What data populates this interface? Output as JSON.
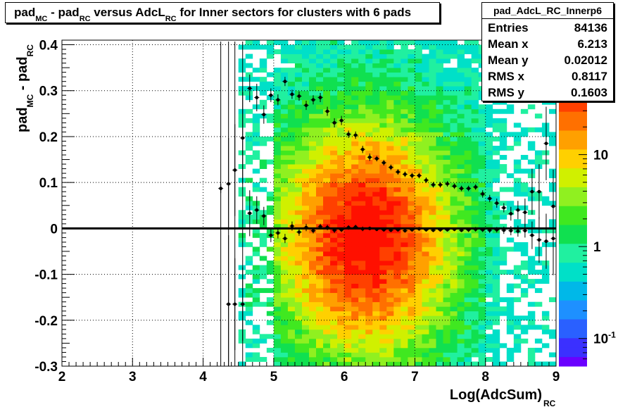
{
  "title": {
    "main": "pad",
    "sub1": "MC",
    "minus": " - pad",
    "sub2": "RC",
    "mid": " versus AdcL",
    "sub3": "RC",
    "tail": " for Inner sectors for clusters with 6 pads"
  },
  "stats": {
    "name": "pad_AdcL_RC_Innerp6",
    "rows": [
      {
        "label": "Entries",
        "value": "84136"
      },
      {
        "label": "Mean x",
        "value": "6.213"
      },
      {
        "label": "Mean y",
        "value": "0.02012"
      },
      {
        "label": "RMS x",
        "value": "0.8117"
      },
      {
        "label": "RMS y",
        "value": "0.1603"
      }
    ]
  },
  "colors": {
    "frame": "#000000",
    "grid": "#000000",
    "profile": "#000000"
  },
  "chart_data": {
    "type": "heatmap",
    "xlabel": {
      "main": "Log(AdcSum)",
      "sub": "RC"
    },
    "ylabel": {
      "main": "pad",
      "sub1": "MC",
      "minus": " - pad",
      "sub2": "RC"
    },
    "xlim": [
      2,
      9
    ],
    "ylim": [
      -0.3,
      0.41
    ],
    "xticks": [
      "2",
      "3",
      "4",
      "5",
      "6",
      "7",
      "8",
      "9"
    ],
    "yticks": [
      "-0.3",
      "-0.2",
      "-0.1",
      "0",
      "0.1",
      "0.2",
      "0.3",
      "0.4"
    ],
    "colorbar": {
      "scale": "log",
      "range": [
        0.05,
        60
      ],
      "labels": [
        {
          "value": 10,
          "text": "10"
        },
        {
          "value": 1,
          "text": "1"
        },
        {
          "value": 0.1,
          "text": "10",
          "exp": "-1"
        }
      ]
    },
    "grid": true,
    "profile_upper": [
      [
        4.25,
        0.087,
        0.01
      ],
      [
        4.36,
        0.097,
        0.1
      ],
      [
        4.45,
        0.127,
        0.1
      ],
      [
        4.56,
        0.197,
        0.1
      ],
      [
        4.66,
        0.305,
        0.03
      ],
      [
        4.76,
        0.285,
        0.03
      ],
      [
        4.86,
        0.248,
        0.02
      ],
      [
        4.96,
        0.29,
        0.015
      ],
      [
        5.06,
        0.28,
        0.012
      ],
      [
        5.16,
        0.32,
        0.01
      ],
      [
        5.26,
        0.292,
        0.01
      ],
      [
        5.36,
        0.288,
        0.01
      ],
      [
        5.46,
        0.268,
        0.01
      ],
      [
        5.56,
        0.28,
        0.01
      ],
      [
        5.66,
        0.285,
        0.01
      ],
      [
        5.76,
        0.255,
        0.01
      ],
      [
        5.86,
        0.23,
        0.01
      ],
      [
        5.96,
        0.235,
        0.01
      ],
      [
        6.06,
        0.205,
        0.008
      ],
      [
        6.16,
        0.203,
        0.008
      ],
      [
        6.26,
        0.172,
        0.008
      ],
      [
        6.36,
        0.155,
        0.008
      ],
      [
        6.46,
        0.152,
        0.006
      ],
      [
        6.56,
        0.143,
        0.006
      ],
      [
        6.66,
        0.133,
        0.006
      ],
      [
        6.76,
        0.123,
        0.006
      ],
      [
        6.86,
        0.118,
        0.006
      ],
      [
        6.96,
        0.115,
        0.006
      ],
      [
        7.06,
        0.115,
        0.006
      ],
      [
        7.16,
        0.105,
        0.006
      ],
      [
        7.26,
        0.095,
        0.006
      ],
      [
        7.36,
        0.095,
        0.006
      ],
      [
        7.46,
        0.097,
        0.006
      ],
      [
        7.56,
        0.092,
        0.006
      ],
      [
        7.66,
        0.087,
        0.006
      ],
      [
        7.76,
        0.087,
        0.006
      ],
      [
        7.86,
        0.09,
        0.006
      ],
      [
        7.96,
        0.075,
        0.008
      ],
      [
        8.06,
        0.065,
        0.008
      ],
      [
        8.16,
        0.055,
        0.01
      ],
      [
        8.26,
        0.045,
        0.01
      ],
      [
        8.36,
        0.032,
        0.015
      ],
      [
        8.46,
        0.04,
        0.02
      ],
      [
        8.56,
        0.035,
        0.03
      ],
      [
        8.66,
        0.08,
        0.05
      ],
      [
        8.76,
        0.08,
        0.06
      ],
      [
        8.86,
        0.185,
        0.08
      ],
      [
        8.96,
        0.048,
        0.08
      ]
    ],
    "profile_lower": [
      [
        4.36,
        -0.165,
        0.15
      ],
      [
        4.45,
        -0.165,
        0.1
      ],
      [
        4.56,
        -0.165,
        0.08
      ],
      [
        4.66,
        0.033,
        0.05
      ],
      [
        4.76,
        0.04,
        0.03
      ],
      [
        4.86,
        0.027,
        0.02
      ],
      [
        4.96,
        -0.015,
        0.015
      ],
      [
        5.06,
        -0.01,
        0.012
      ],
      [
        5.16,
        -0.022,
        0.01
      ],
      [
        5.26,
        0.005,
        0.01
      ],
      [
        5.36,
        -0.008,
        0.008
      ],
      [
        5.46,
        0.002,
        0.008
      ],
      [
        5.56,
        -0.005,
        0.006
      ],
      [
        5.66,
        0.004,
        0.006
      ],
      [
        5.76,
        0.002,
        0.006
      ],
      [
        5.86,
        -0.004,
        0.006
      ],
      [
        5.96,
        -0.003,
        0.005
      ],
      [
        6.06,
        0.002,
        0.005
      ],
      [
        6.16,
        0.003,
        0.005
      ],
      [
        6.26,
        -0.001,
        0.005
      ],
      [
        6.36,
        0.0,
        0.004
      ],
      [
        6.46,
        -0.002,
        0.004
      ],
      [
        6.56,
        -0.003,
        0.004
      ],
      [
        6.66,
        -0.004,
        0.004
      ],
      [
        6.76,
        -0.003,
        0.004
      ],
      [
        6.86,
        -0.005,
        0.004
      ],
      [
        6.96,
        -0.003,
        0.004
      ],
      [
        7.06,
        -0.001,
        0.004
      ],
      [
        7.16,
        -0.003,
        0.004
      ],
      [
        7.26,
        -0.004,
        0.004
      ],
      [
        7.36,
        -0.003,
        0.004
      ],
      [
        7.46,
        -0.003,
        0.004
      ],
      [
        7.56,
        -0.002,
        0.004
      ],
      [
        7.66,
        -0.004,
        0.004
      ],
      [
        7.76,
        -0.003,
        0.005
      ],
      [
        7.86,
        -0.002,
        0.005
      ],
      [
        7.96,
        -0.003,
        0.005
      ],
      [
        8.06,
        -0.004,
        0.006
      ],
      [
        8.16,
        -0.003,
        0.006
      ],
      [
        8.26,
        -0.004,
        0.008
      ],
      [
        8.36,
        -0.005,
        0.01
      ],
      [
        8.46,
        -0.006,
        0.012
      ],
      [
        8.56,
        -0.005,
        0.015
      ],
      [
        8.66,
        -0.015,
        0.03
      ],
      [
        8.76,
        -0.025,
        0.05
      ],
      [
        8.86,
        -0.028,
        0.06
      ],
      [
        8.96,
        -0.022,
        0.08
      ]
    ],
    "zero_line": 0
  }
}
